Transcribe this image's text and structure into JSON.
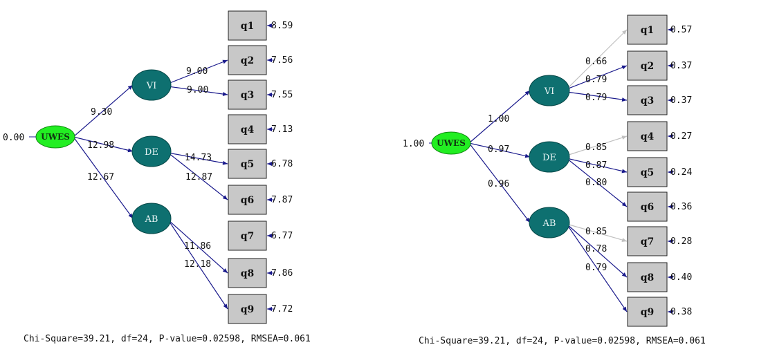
{
  "colors": {
    "latent": "#0e7070",
    "root": "#22ee22",
    "box_fill": "#c8c8c8",
    "path": "#1a1a8c",
    "path_fixed": "#c0c0c0"
  },
  "diagrams": [
    {
      "root": {
        "label": "UWES",
        "error": "0.00"
      },
      "latent_paths": {
        "VI": "9.30",
        "DE": "12.98",
        "AB": "12.67"
      },
      "indicators": [
        {
          "label": "q1",
          "error": "8.59",
          "loading": ""
        },
        {
          "label": "q2",
          "error": "7.56",
          "loading": "9.00"
        },
        {
          "label": "q3",
          "error": "7.55",
          "loading": "9.00"
        },
        {
          "label": "q4",
          "error": "7.13",
          "loading": ""
        },
        {
          "label": "q5",
          "error": "6.78",
          "loading": "14.73"
        },
        {
          "label": "q6",
          "error": "7.87",
          "loading": "12.87"
        },
        {
          "label": "q7",
          "error": "6.77",
          "loading": ""
        },
        {
          "label": "q8",
          "error": "7.86",
          "loading": "11.86"
        },
        {
          "label": "q9",
          "error": "7.72",
          "loading": "12.18"
        }
      ],
      "fit": "Chi-Square=39.21, df=24, P-value=0.02598, RMSEA=0.061"
    },
    {
      "root": {
        "label": "UWES",
        "error": "1.00"
      },
      "latent_paths": {
        "VI": "1.00",
        "DE": "0.97",
        "AB": "0.96"
      },
      "indicators": [
        {
          "label": "q1",
          "error": "0.57",
          "loading": "0.66"
        },
        {
          "label": "q2",
          "error": "0.37",
          "loading": "0.79"
        },
        {
          "label": "q3",
          "error": "0.37",
          "loading": "0.79"
        },
        {
          "label": "q4",
          "error": "0.27",
          "loading": "0.85"
        },
        {
          "label": "q5",
          "error": "0.24",
          "loading": "0.87"
        },
        {
          "label": "q6",
          "error": "0.36",
          "loading": "0.80"
        },
        {
          "label": "q7",
          "error": "0.28",
          "loading": "0.85"
        },
        {
          "label": "q8",
          "error": "0.40",
          "loading": "0.78"
        },
        {
          "label": "q9",
          "error": "0.38",
          "loading": "0.79"
        }
      ],
      "fit": "Chi-Square=39.21, df=24, P-value=0.02598, RMSEA=0.061"
    }
  ]
}
